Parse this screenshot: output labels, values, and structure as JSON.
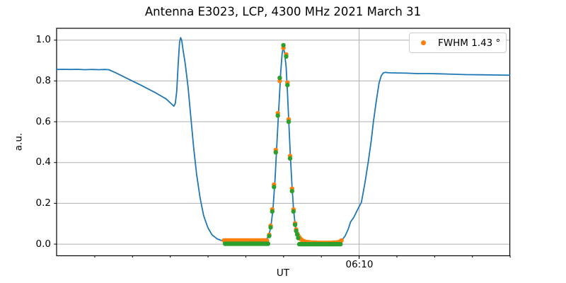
{
  "title": "Antenna E3023, LCP, 4300 MHz 2021 March 31",
  "legend": {
    "label": "FWHM 1.43 °",
    "marker_color": "#ff7f0e"
  },
  "chart_data": {
    "type": "line+scatter",
    "title": "Antenna E3023, LCP, 4300 MHz 2021 March 31",
    "xlabel": "UT",
    "ylabel": "a.u.",
    "x_unit": "minutes relative to 06:10 UT",
    "xlim": [
      -40.05,
      19.95
    ],
    "ylim": [
      -0.057,
      1.058
    ],
    "grid": "both-major",
    "grid_color": "#b0b0b0",
    "background": "#ffffff",
    "yticks": [
      0.0,
      0.2,
      0.4,
      0.6,
      0.8,
      1.0
    ],
    "ytick_labels": [
      "0.0",
      "0.2",
      "0.4",
      "0.6",
      "0.8",
      "1.0"
    ],
    "xticks_minor": [
      -35,
      -30,
      -25,
      -20,
      -15,
      -10,
      -5,
      0,
      5,
      10,
      15,
      20
    ],
    "xtick_major": {
      "value": 0,
      "label": "06:10"
    },
    "legend_position": "upper right",
    "series": [
      {
        "name": "drift-scan-line",
        "type": "line",
        "color": "#1f77b4",
        "width": 1.8,
        "points": [
          [
            -40.07,
            0.856
          ],
          [
            -39.13,
            0.857
          ],
          [
            -38.19,
            0.856
          ],
          [
            -37.26,
            0.857
          ],
          [
            -36.32,
            0.855
          ],
          [
            -35.38,
            0.856
          ],
          [
            -34.45,
            0.855
          ],
          [
            -33.7,
            0.856
          ],
          [
            -33.14,
            0.855
          ],
          [
            -32.11,
            0.838
          ],
          [
            -30.7,
            0.812
          ],
          [
            -28.83,
            0.778
          ],
          [
            -26.96,
            0.742
          ],
          [
            -25.55,
            0.712
          ],
          [
            -24.52,
            0.676
          ],
          [
            -24.33,
            0.69
          ],
          [
            -24.15,
            0.75
          ],
          [
            -23.96,
            0.88
          ],
          [
            -23.77,
            0.99
          ],
          [
            -23.63,
            1.012
          ],
          [
            -23.49,
            1.0
          ],
          [
            -23.3,
            0.95
          ],
          [
            -23.02,
            0.885
          ],
          [
            -22.65,
            0.77
          ],
          [
            -22.27,
            0.62
          ],
          [
            -21.9,
            0.47
          ],
          [
            -21.52,
            0.345
          ],
          [
            -21.05,
            0.225
          ],
          [
            -20.59,
            0.14
          ],
          [
            -20.02,
            0.08
          ],
          [
            -19.46,
            0.045
          ],
          [
            -18.81,
            0.026
          ],
          [
            -18.24,
            0.018
          ],
          [
            -17.59,
            0.015
          ],
          [
            -16.65,
            0.013
          ],
          [
            -15.25,
            0.012
          ],
          [
            -13.84,
            0.012
          ],
          [
            -12.9,
            0.014
          ],
          [
            -12.34,
            0.02
          ],
          [
            -11.97,
            0.04
          ],
          [
            -11.69,
            0.085
          ],
          [
            -11.41,
            0.17
          ],
          [
            -11.13,
            0.32
          ],
          [
            -10.85,
            0.52
          ],
          [
            -10.56,
            0.72
          ],
          [
            -10.38,
            0.845
          ],
          [
            -10.19,
            0.935
          ],
          [
            -10.03,
            0.968
          ],
          [
            -9.86,
            0.935
          ],
          [
            -9.67,
            0.87
          ],
          [
            -9.49,
            0.745
          ],
          [
            -9.3,
            0.59
          ],
          [
            -9.11,
            0.44
          ],
          [
            -8.88,
            0.28
          ],
          [
            -8.69,
            0.175
          ],
          [
            -8.5,
            0.105
          ],
          [
            -8.32,
            0.062
          ],
          [
            -8.13,
            0.04
          ],
          [
            -7.85,
            0.026
          ],
          [
            -7.47,
            0.017
          ],
          [
            -7.01,
            0.012
          ],
          [
            -6.35,
            0.009
          ],
          [
            -5.41,
            0.007
          ],
          [
            -4.48,
            0.007
          ],
          [
            -3.54,
            0.009
          ],
          [
            -2.79,
            0.013
          ],
          [
            -2.23,
            0.022
          ],
          [
            -1.85,
            0.04
          ],
          [
            -1.48,
            0.07
          ],
          [
            -1.11,
            0.11
          ],
          [
            -0.73,
            0.13
          ],
          [
            -0.26,
            0.165
          ],
          [
            0.3,
            0.205
          ],
          [
            0.77,
            0.3
          ],
          [
            1.24,
            0.41
          ],
          [
            1.61,
            0.51
          ],
          [
            1.89,
            0.6
          ],
          [
            2.27,
            0.7
          ],
          [
            2.64,
            0.79
          ],
          [
            2.92,
            0.825
          ],
          [
            3.18,
            0.839
          ],
          [
            3.48,
            0.842
          ],
          [
            3.95,
            0.84
          ],
          [
            4.89,
            0.839
          ],
          [
            6.29,
            0.838
          ],
          [
            7.7,
            0.836
          ],
          [
            9.1,
            0.836
          ],
          [
            10.51,
            0.835
          ],
          [
            12.38,
            0.833
          ],
          [
            14.25,
            0.831
          ],
          [
            16.13,
            0.83
          ],
          [
            18.0,
            0.829
          ],
          [
            19.93,
            0.828
          ]
        ]
      },
      {
        "name": "gaussian-fit-scatter",
        "type": "scatter",
        "color": "#ff7f0e",
        "radius": 3.2,
        "legend_label": "FWHM 1.43 °",
        "fwhm_deg": 1.43,
        "runs": [
          {
            "from": -17.9,
            "to": -12.15,
            "step": 0.1,
            "y": 0.018
          }
        ],
        "points": [
          [
            -11.9,
            0.046
          ],
          [
            -11.72,
            0.09
          ],
          [
            -11.5,
            0.17
          ],
          [
            -11.27,
            0.292
          ],
          [
            -11.03,
            0.462
          ],
          [
            -10.76,
            0.642
          ],
          [
            -10.51,
            0.8
          ],
          [
            -10.02,
            0.962
          ],
          [
            -9.66,
            0.93
          ],
          [
            -9.49,
            0.792
          ],
          [
            -9.33,
            0.612
          ],
          [
            -9.14,
            0.432
          ],
          [
            -8.88,
            0.272
          ],
          [
            -8.69,
            0.17
          ],
          [
            -8.48,
            0.102
          ],
          [
            -8.34,
            0.072
          ],
          [
            -8.2,
            0.052
          ],
          [
            -8.06,
            0.042
          ],
          [
            -7.92,
            0.034
          ],
          [
            -7.78,
            0.027
          ],
          [
            -7.64,
            0.022
          ],
          [
            -7.5,
            0.018
          ],
          [
            -7.36,
            0.015
          ],
          [
            -7.2,
            0.013
          ],
          [
            -7.0,
            0.011
          ],
          [
            -6.8,
            0.01
          ],
          [
            -6.6,
            0.009
          ],
          [
            -6.4,
            0.008
          ],
          [
            -6.2,
            0.0075
          ],
          [
            -6.0,
            0.007
          ],
          [
            -5.8,
            0.007
          ],
          [
            -5.6,
            0.0065
          ],
          [
            -5.4,
            0.0065
          ],
          [
            -5.2,
            0.006
          ],
          [
            -5.0,
            0.006
          ],
          [
            -4.8,
            0.006
          ],
          [
            -4.6,
            0.006
          ],
          [
            -4.4,
            0.006
          ],
          [
            -4.2,
            0.006
          ],
          [
            -4.0,
            0.006
          ],
          [
            -3.8,
            0.006
          ],
          [
            -3.6,
            0.0065
          ],
          [
            -3.4,
            0.007
          ],
          [
            -3.2,
            0.0075
          ],
          [
            -3.0,
            0.008
          ],
          [
            -2.8,
            0.009
          ],
          [
            -2.6,
            0.011
          ],
          [
            -2.45,
            0.014
          ],
          [
            -2.33,
            0.018
          ]
        ]
      },
      {
        "name": "calibrated-data-scatter",
        "type": "scatter",
        "color": "#2ca02c",
        "radius": 3.2,
        "runs": [
          {
            "from": -17.75,
            "to": -12.05,
            "step": 0.19,
            "y": 0.002
          },
          {
            "from": -7.92,
            "to": -2.32,
            "step": 0.195,
            "y": 0.0
          }
        ],
        "points": [
          [
            -11.9,
            0.04
          ],
          [
            -11.72,
            0.082
          ],
          [
            -11.5,
            0.16
          ],
          [
            -11.27,
            0.28
          ],
          [
            -11.03,
            0.45
          ],
          [
            -10.76,
            0.63
          ],
          [
            -10.51,
            0.815
          ],
          [
            -10.02,
            0.975
          ],
          [
            -9.66,
            0.92
          ],
          [
            -9.49,
            0.78
          ],
          [
            -9.33,
            0.6
          ],
          [
            -9.14,
            0.42
          ],
          [
            -8.88,
            0.26
          ],
          [
            -8.69,
            0.16
          ],
          [
            -8.48,
            0.095
          ],
          [
            -8.34,
            0.065
          ],
          [
            -8.2,
            0.047
          ],
          [
            -8.06,
            0.03
          ]
        ]
      }
    ]
  }
}
